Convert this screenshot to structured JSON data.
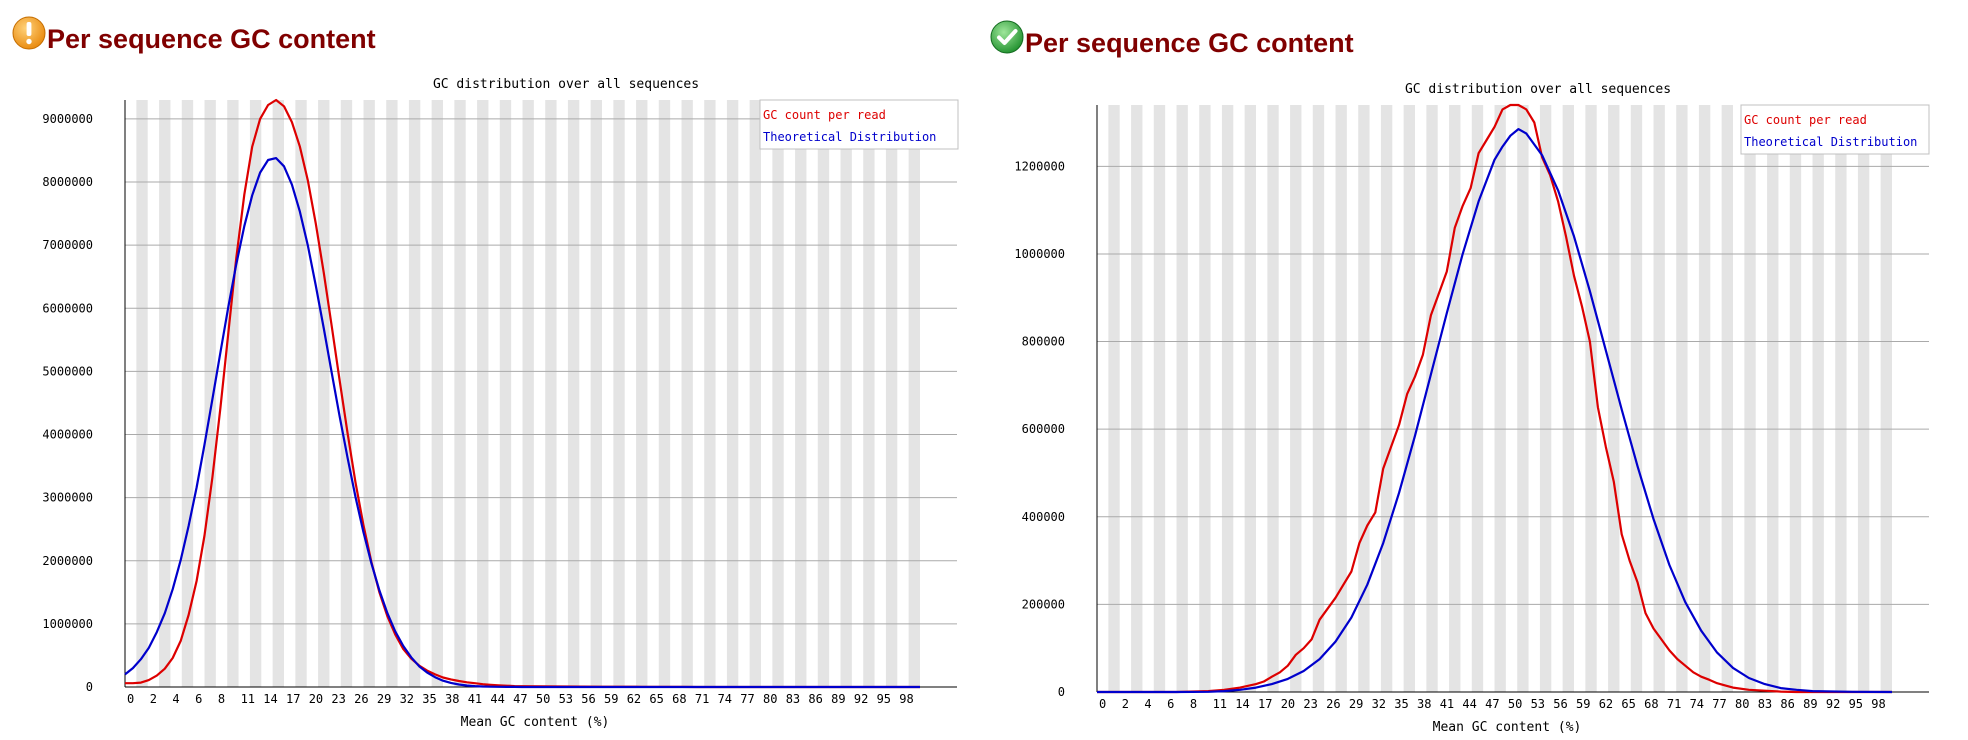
{
  "panels": [
    {
      "title": "Per sequence GC content",
      "status_icon": "warning-icon"
    },
    {
      "title": "Per sequence GC content",
      "status_icon": "pass-icon"
    }
  ],
  "colors": {
    "title": "#800000",
    "gc_count": "#dd0000",
    "theoretical": "#0000cc",
    "stripe": "#e4e4e4",
    "gridline": "#aaaaaa",
    "warning": "#f39c12",
    "pass": "#27ae60"
  },
  "chart_data": [
    {
      "type": "line",
      "title": "GC distribution over all sequences",
      "xlabel": "Mean GC content (%)",
      "ylabel": "",
      "x_tick_labels": [
        "0",
        "2",
        "4",
        "6",
        "8",
        "11",
        "14",
        "17",
        "20",
        "23",
        "26",
        "29",
        "32",
        "35",
        "38",
        "41",
        "44",
        "47",
        "50",
        "53",
        "56",
        "59",
        "62",
        "65",
        "68",
        "71",
        "74",
        "77",
        "80",
        "83",
        "86",
        "89",
        "92",
        "95",
        "98"
      ],
      "y_ticks": [
        0,
        1000000,
        2000000,
        3000000,
        4000000,
        5000000,
        6000000,
        7000000,
        8000000,
        9000000
      ],
      "y_tick_labels": [
        "0",
        "1000000",
        "2000000",
        "3000000",
        "4000000",
        "5000000",
        "6000000",
        "7000000",
        "8000000",
        "9000000"
      ],
      "xlim": [
        0,
        100
      ],
      "ylim": [
        0,
        9300000
      ],
      "grid": true,
      "legend_position": "top-right",
      "series": [
        {
          "name": "GC count per read",
          "x": [
            0,
            1,
            2,
            3,
            4,
            5,
            6,
            7,
            8,
            9,
            10,
            11,
            12,
            13,
            14,
            15,
            16,
            17,
            18,
            19,
            20,
            21,
            22,
            23,
            24,
            25,
            26,
            27,
            28,
            29,
            30,
            31,
            32,
            33,
            34,
            35,
            36,
            37,
            38,
            39,
            40,
            41,
            42,
            43,
            44,
            45,
            46,
            47,
            48,
            49,
            50,
            55,
            60,
            65,
            70,
            72,
            74,
            80,
            90,
            100
          ],
          "y": [
            60000,
            60000,
            70000,
            110000,
            180000,
            290000,
            460000,
            730000,
            1140000,
            1680000,
            2400000,
            3320000,
            4420000,
            5620000,
            6800000,
            7800000,
            8560000,
            9000000,
            9220000,
            9300000,
            9200000,
            8950000,
            8560000,
            8020000,
            7340000,
            6560000,
            5720000,
            4860000,
            4020000,
            3240000,
            2560000,
            1980000,
            1500000,
            1120000,
            830000,
            600000,
            450000,
            340000,
            260000,
            200000,
            150000,
            120000,
            95000,
            75000,
            60000,
            45000,
            35000,
            27000,
            20000,
            15000,
            12000,
            8000,
            5000,
            3000,
            2000,
            0,
            0,
            0,
            0,
            0
          ]
        },
        {
          "name": "Theoretical Distribution",
          "x": [
            0,
            1,
            2,
            3,
            4,
            5,
            6,
            7,
            8,
            9,
            10,
            11,
            12,
            13,
            14,
            15,
            16,
            17,
            18,
            19,
            20,
            21,
            22,
            23,
            24,
            25,
            26,
            27,
            28,
            29,
            30,
            31,
            32,
            33,
            34,
            35,
            36,
            37,
            38,
            39,
            40,
            41,
            42,
            43,
            44,
            45,
            46,
            47,
            48,
            49,
            50,
            55,
            60,
            70,
            80,
            90,
            100
          ],
          "y": [
            200000,
            300000,
            440000,
            620000,
            870000,
            1170000,
            1550000,
            2010000,
            2550000,
            3160000,
            3840000,
            4560000,
            5300000,
            6030000,
            6700000,
            7300000,
            7790000,
            8150000,
            8350000,
            8380000,
            8250000,
            7960000,
            7530000,
            6990000,
            6360000,
            5680000,
            4980000,
            4290000,
            3630000,
            3010000,
            2450000,
            1960000,
            1530000,
            1170000,
            880000,
            650000,
            470000,
            330000,
            230000,
            155000,
            100000,
            65000,
            40000,
            24000,
            14000,
            8000,
            5000,
            3000,
            2000,
            1000,
            500,
            0,
            0,
            0,
            0,
            0,
            0
          ]
        }
      ]
    },
    {
      "type": "line",
      "title": "GC distribution over all sequences",
      "xlabel": "Mean GC content (%)",
      "ylabel": "",
      "x_tick_labels": [
        "0",
        "2",
        "4",
        "6",
        "8",
        "11",
        "14",
        "17",
        "20",
        "23",
        "26",
        "29",
        "32",
        "35",
        "38",
        "41",
        "44",
        "47",
        "50",
        "53",
        "56",
        "59",
        "62",
        "65",
        "68",
        "71",
        "74",
        "77",
        "80",
        "83",
        "86",
        "89",
        "92",
        "95",
        "98"
      ],
      "y_ticks": [
        0,
        200000,
        400000,
        600000,
        800000,
        1000000,
        1200000
      ],
      "y_tick_labels": [
        "0",
        "200000",
        "400000",
        "600000",
        "800000",
        "1000000",
        "1200000"
      ],
      "xlim": [
        0,
        100
      ],
      "ylim": [
        0,
        1340000
      ],
      "grid": true,
      "legend_position": "top-right",
      "series": [
        {
          "name": "GC count per read",
          "x": [
            0,
            5,
            10,
            14,
            16,
            18,
            20,
            21,
            22,
            23,
            24,
            25,
            26,
            27,
            28,
            29,
            30,
            31,
            32,
            33,
            34,
            35,
            36,
            37,
            38,
            39,
            40,
            41,
            42,
            43,
            44,
            45,
            46,
            47,
            48,
            49,
            50,
            51,
            52,
            53,
            54,
            55,
            56,
            57,
            58,
            59,
            60,
            61,
            62,
            63,
            64,
            65,
            66,
            67,
            68,
            69,
            70,
            71,
            72,
            73,
            74,
            75,
            76,
            77,
            78,
            79,
            80,
            82,
            84,
            86,
            88,
            90,
            100
          ],
          "y": [
            0,
            0,
            0,
            2000,
            5000,
            10000,
            18000,
            24000,
            35000,
            45000,
            60000,
            85000,
            100000,
            120000,
            165000,
            190000,
            215000,
            245000,
            275000,
            340000,
            380000,
            410000,
            510000,
            560000,
            610000,
            680000,
            720000,
            770000,
            860000,
            910000,
            960000,
            1060000,
            1110000,
            1150000,
            1230000,
            1260000,
            1290000,
            1330000,
            1340000,
            1340000,
            1330000,
            1300000,
            1220000,
            1180000,
            1120000,
            1040000,
            950000,
            880000,
            800000,
            650000,
            560000,
            480000,
            360000,
            300000,
            250000,
            180000,
            145000,
            120000,
            95000,
            75000,
            60000,
            45000,
            35000,
            28000,
            20000,
            15000,
            10000,
            5000,
            3000,
            1000,
            0,
            0,
            0
          ]
        },
        {
          "name": "Theoretical Distribution",
          "x": [
            0,
            10,
            14,
            16,
            18,
            20,
            22,
            24,
            26,
            28,
            30,
            32,
            34,
            36,
            38,
            40,
            42,
            44,
            46,
            48,
            50,
            51,
            52,
            53,
            54,
            56,
            58,
            60,
            62,
            64,
            66,
            68,
            70,
            72,
            74,
            76,
            78,
            80,
            82,
            84,
            86,
            88,
            90,
            95,
            100
          ],
          "y": [
            0,
            0,
            500,
            2000,
            5000,
            10000,
            18000,
            30000,
            48000,
            75000,
            115000,
            170000,
            245000,
            340000,
            455000,
            585000,
            725000,
            865000,
            1000000,
            1120000,
            1215000,
            1245000,
            1270000,
            1285000,
            1275000,
            1225000,
            1145000,
            1040000,
            915000,
            780000,
            645000,
            515000,
            395000,
            290000,
            205000,
            140000,
            90000,
            55000,
            32000,
            18000,
            9000,
            5000,
            2000,
            500,
            0
          ]
        }
      ]
    }
  ]
}
